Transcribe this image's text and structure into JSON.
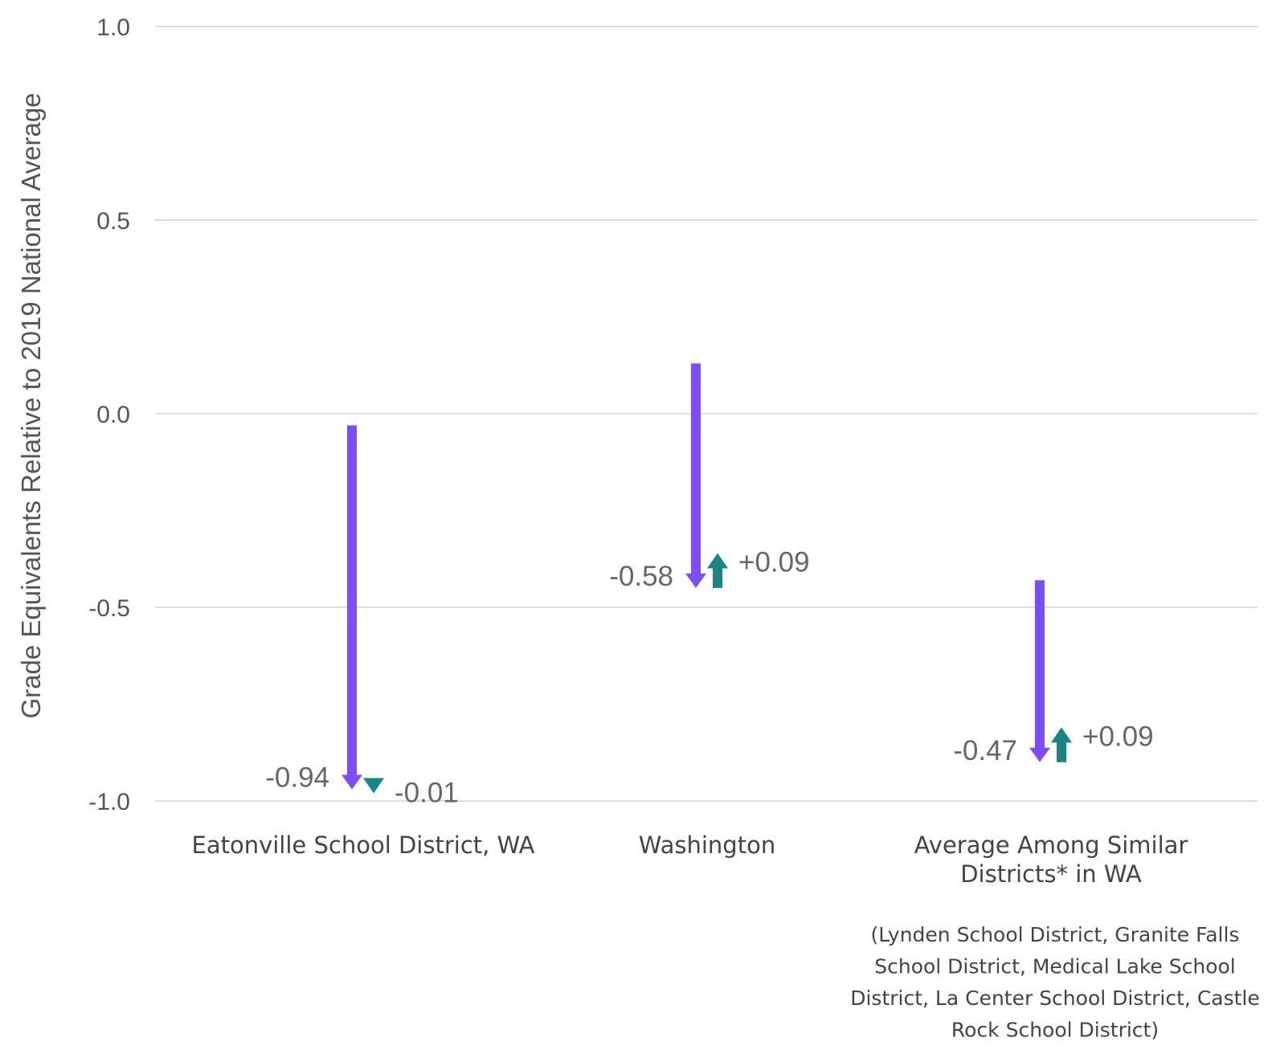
{
  "chart_data": {
    "type": "arrow",
    "title": "",
    "ylabel": "Grade Equivalents Relative to 2019 National Average",
    "ylim": [
      -1.0,
      1.0
    ],
    "yticks": [
      1.0,
      0.5,
      0.0,
      -0.5,
      -1.0
    ],
    "ytick_labels": [
      "1.0",
      "0.5",
      "0.0",
      "-0.5",
      "-1.0"
    ],
    "grid": true,
    "colors": {
      "decline": "#7c4dff",
      "change": "#1a8585",
      "grid": "#dddddd"
    },
    "categories": [
      {
        "label_lines": [
          "Eatonville School District, WA"
        ],
        "note_lines": [],
        "start": -0.03,
        "decline": -0.94,
        "decline_label": "-0.94",
        "change": -0.01,
        "change_label": "-0.01"
      },
      {
        "label_lines": [
          "Washington"
        ],
        "note_lines": [],
        "start": 0.13,
        "decline": -0.58,
        "decline_label": "-0.58",
        "change": 0.09,
        "change_label": "+0.09"
      },
      {
        "label_lines": [
          "Average Among Similar",
          "Districts* in WA"
        ],
        "note_lines": [
          "(Lynden School District, Granite Falls",
          "School District, Medical Lake School",
          "District, La Center School District, Castle",
          "Rock School District)"
        ],
        "start": -0.43,
        "decline": -0.47,
        "decline_label": "-0.47",
        "change": 0.09,
        "change_label": "+0.09"
      }
    ]
  }
}
